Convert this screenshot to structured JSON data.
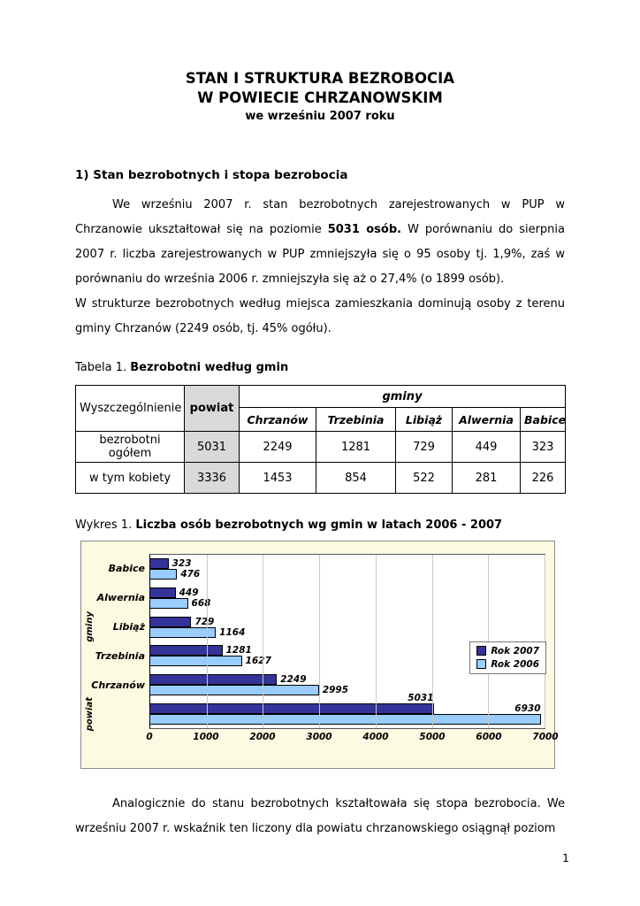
{
  "document": {
    "title_line1": "STAN I STRUKTURA  BEZROBOCIA",
    "title_line2": "W POWIECIE CHRZANOWSKIM",
    "title_line3": "we wrześniu 2007 roku",
    "section_heading": "1) Stan bezrobotnych i stopa bezrobocia",
    "para1_a": "We wrześniu 2007 r. stan bezrobotnych zarejestrowanych w PUP w Chrzanowie ukształtował się na poziomie ",
    "para1_b": "5031 osób.",
    "para1_c": " W porównaniu do sierpnia 2007 r. liczba zarejestrowanych w PUP zmniejszyła się o 95 osoby tj. 1,9%, zaś w porównaniu do września 2006 r. zmniejszyła się aż o 27,4% (o 1899 osób).",
    "para2": "W strukturze bezrobotnych według miejsca zamieszkania dominują osoby z terenu gminy Chrzanów (2249 osób, tj. 45% ogółu).",
    "closing_para": "Analogicznie do stanu bezrobotnych kształtowała się stopa bezrobocia. We wrześniu 2007 r. wskaźnik ten liczony dla powiatu chrzanowskiego osiągnął poziom",
    "page_number": "1"
  },
  "table": {
    "caption_prefix": "Tabela 1. ",
    "caption_title": "Bezrobotni według gmin",
    "header_col1": "Wyszczególnienie",
    "header_powiat": "powiat",
    "header_group": "gminy",
    "gmina_headers": [
      "Chrzanów",
      "Trzebinia",
      "Libiąż",
      "Alwernia",
      "Babice"
    ],
    "rows": [
      {
        "label": "bezrobotni ogółem",
        "powiat": "5031",
        "values": [
          "2249",
          "1281",
          "729",
          "449",
          "323"
        ]
      },
      {
        "label": "w tym kobiety",
        "powiat": "3336",
        "values": [
          "1453",
          "854",
          "522",
          "281",
          "226"
        ]
      }
    ]
  },
  "chart": {
    "caption_prefix": "Wykres 1. ",
    "caption_title": "Liczba osób bezrobotnych wg gmin w latach 2006 - 2007"
  },
  "chart_data": {
    "type": "bar",
    "orientation": "horizontal",
    "title": "Liczba osób bezrobotnych wg gmin w latach 2006 - 2007",
    "categories": [
      "Babice",
      "Alwernia",
      "Libiąż",
      "Trzebinia",
      "Chrzanów",
      "powiat"
    ],
    "category_labels": [
      "Babice",
      "Alwernia",
      "Libiąż",
      "Trzebinia",
      "Chrzanów",
      ""
    ],
    "category_axis_groups": [
      {
        "label": "gminy",
        "span": 5
      },
      {
        "label": "powiat",
        "span": 1
      }
    ],
    "series": [
      {
        "name": "Rok 2007",
        "color": "#333399",
        "values": [
          323,
          449,
          729,
          1281,
          2249,
          5031
        ]
      },
      {
        "name": "Rok 2006",
        "color": "#99CCFF",
        "values": [
          476,
          668,
          1164,
          1627,
          2995,
          6930
        ]
      }
    ],
    "xlim": [
      0,
      7000
    ],
    "x_ticks": [
      "0",
      "1000",
      "2000",
      "3000",
      "4000",
      "5000",
      "6000",
      "7000"
    ],
    "legend_position": "right",
    "grid": true,
    "chart_bg": "#FCFAE1",
    "plot_bg": "#FFFFFF",
    "grid_color": "#C8C8C8"
  },
  "colors": {
    "powiat_column_bg": "#D9D9D9"
  }
}
